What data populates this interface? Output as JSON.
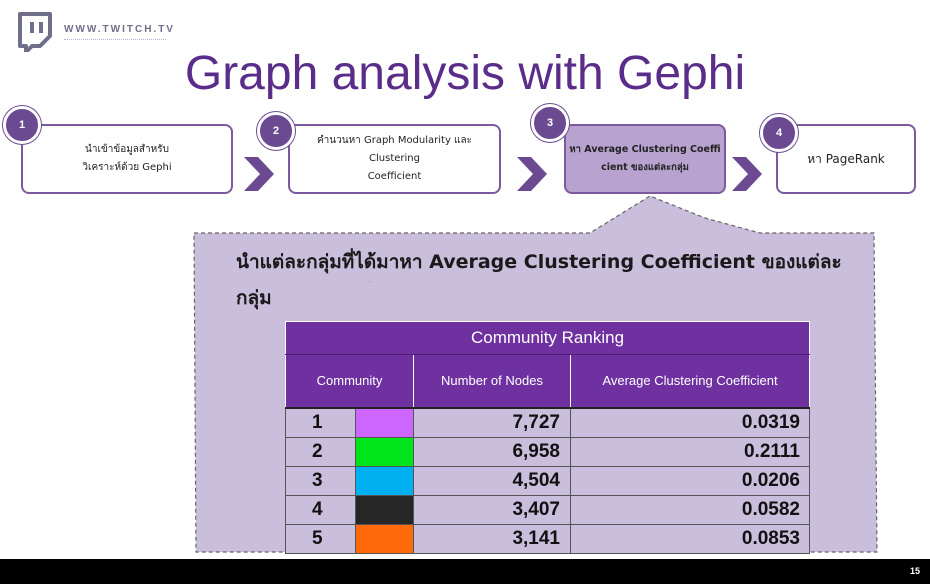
{
  "header": {
    "site_url": "WWW.TWITCH.TV",
    "title": "Graph analysis with Gephi"
  },
  "steps": [
    {
      "number": "1",
      "line1": "นำเข้าข้อมูลสำหรับ",
      "line2": "วิเคราะห์ด้วย  Gephi"
    },
    {
      "number": "2",
      "line1": "คำนวนหา Graph Modularity และ Clustering",
      "line2": "Coefficient"
    },
    {
      "number": "3",
      "line1": "หา Average Clustering Coeffi",
      "line2": "cient ของแต่ละกลุ่ม"
    },
    {
      "number": "4",
      "line1": "หา PageRank",
      "line2": ""
    }
  ],
  "callout": {
    "text": "นำแต่ละกลุ่มที่ได้มาหา Average Clustering Coefficient ของแต่ละกลุ่ม",
    "mark": "\""
  },
  "table": {
    "caption": "Community Ranking",
    "headers": [
      "Community",
      "Number  of Nodes",
      "Average  Clustering Coefficient"
    ],
    "rows": [
      {
        "community": "1",
        "color": "#cc66ff",
        "nodes": "7,727",
        "acc": "0.0319"
      },
      {
        "community": "2",
        "color": "#00e519",
        "nodes": "6,958",
        "acc": "0.2111"
      },
      {
        "community": "3",
        "color": "#00b0f0",
        "nodes": "4,504",
        "acc": "0.0206"
      },
      {
        "community": "4",
        "color": "#262626",
        "nodes": "3,407",
        "acc": "0.0582"
      },
      {
        "community": "5",
        "color": "#ff6a0d",
        "nodes": "3,141",
        "acc": "0.0853"
      }
    ]
  },
  "footer": {
    "page_number": "15"
  },
  "colors": {
    "accent": "#5b2d8a",
    "header_bg": "#7031a0",
    "callout_bg": "#c9bedc"
  }
}
